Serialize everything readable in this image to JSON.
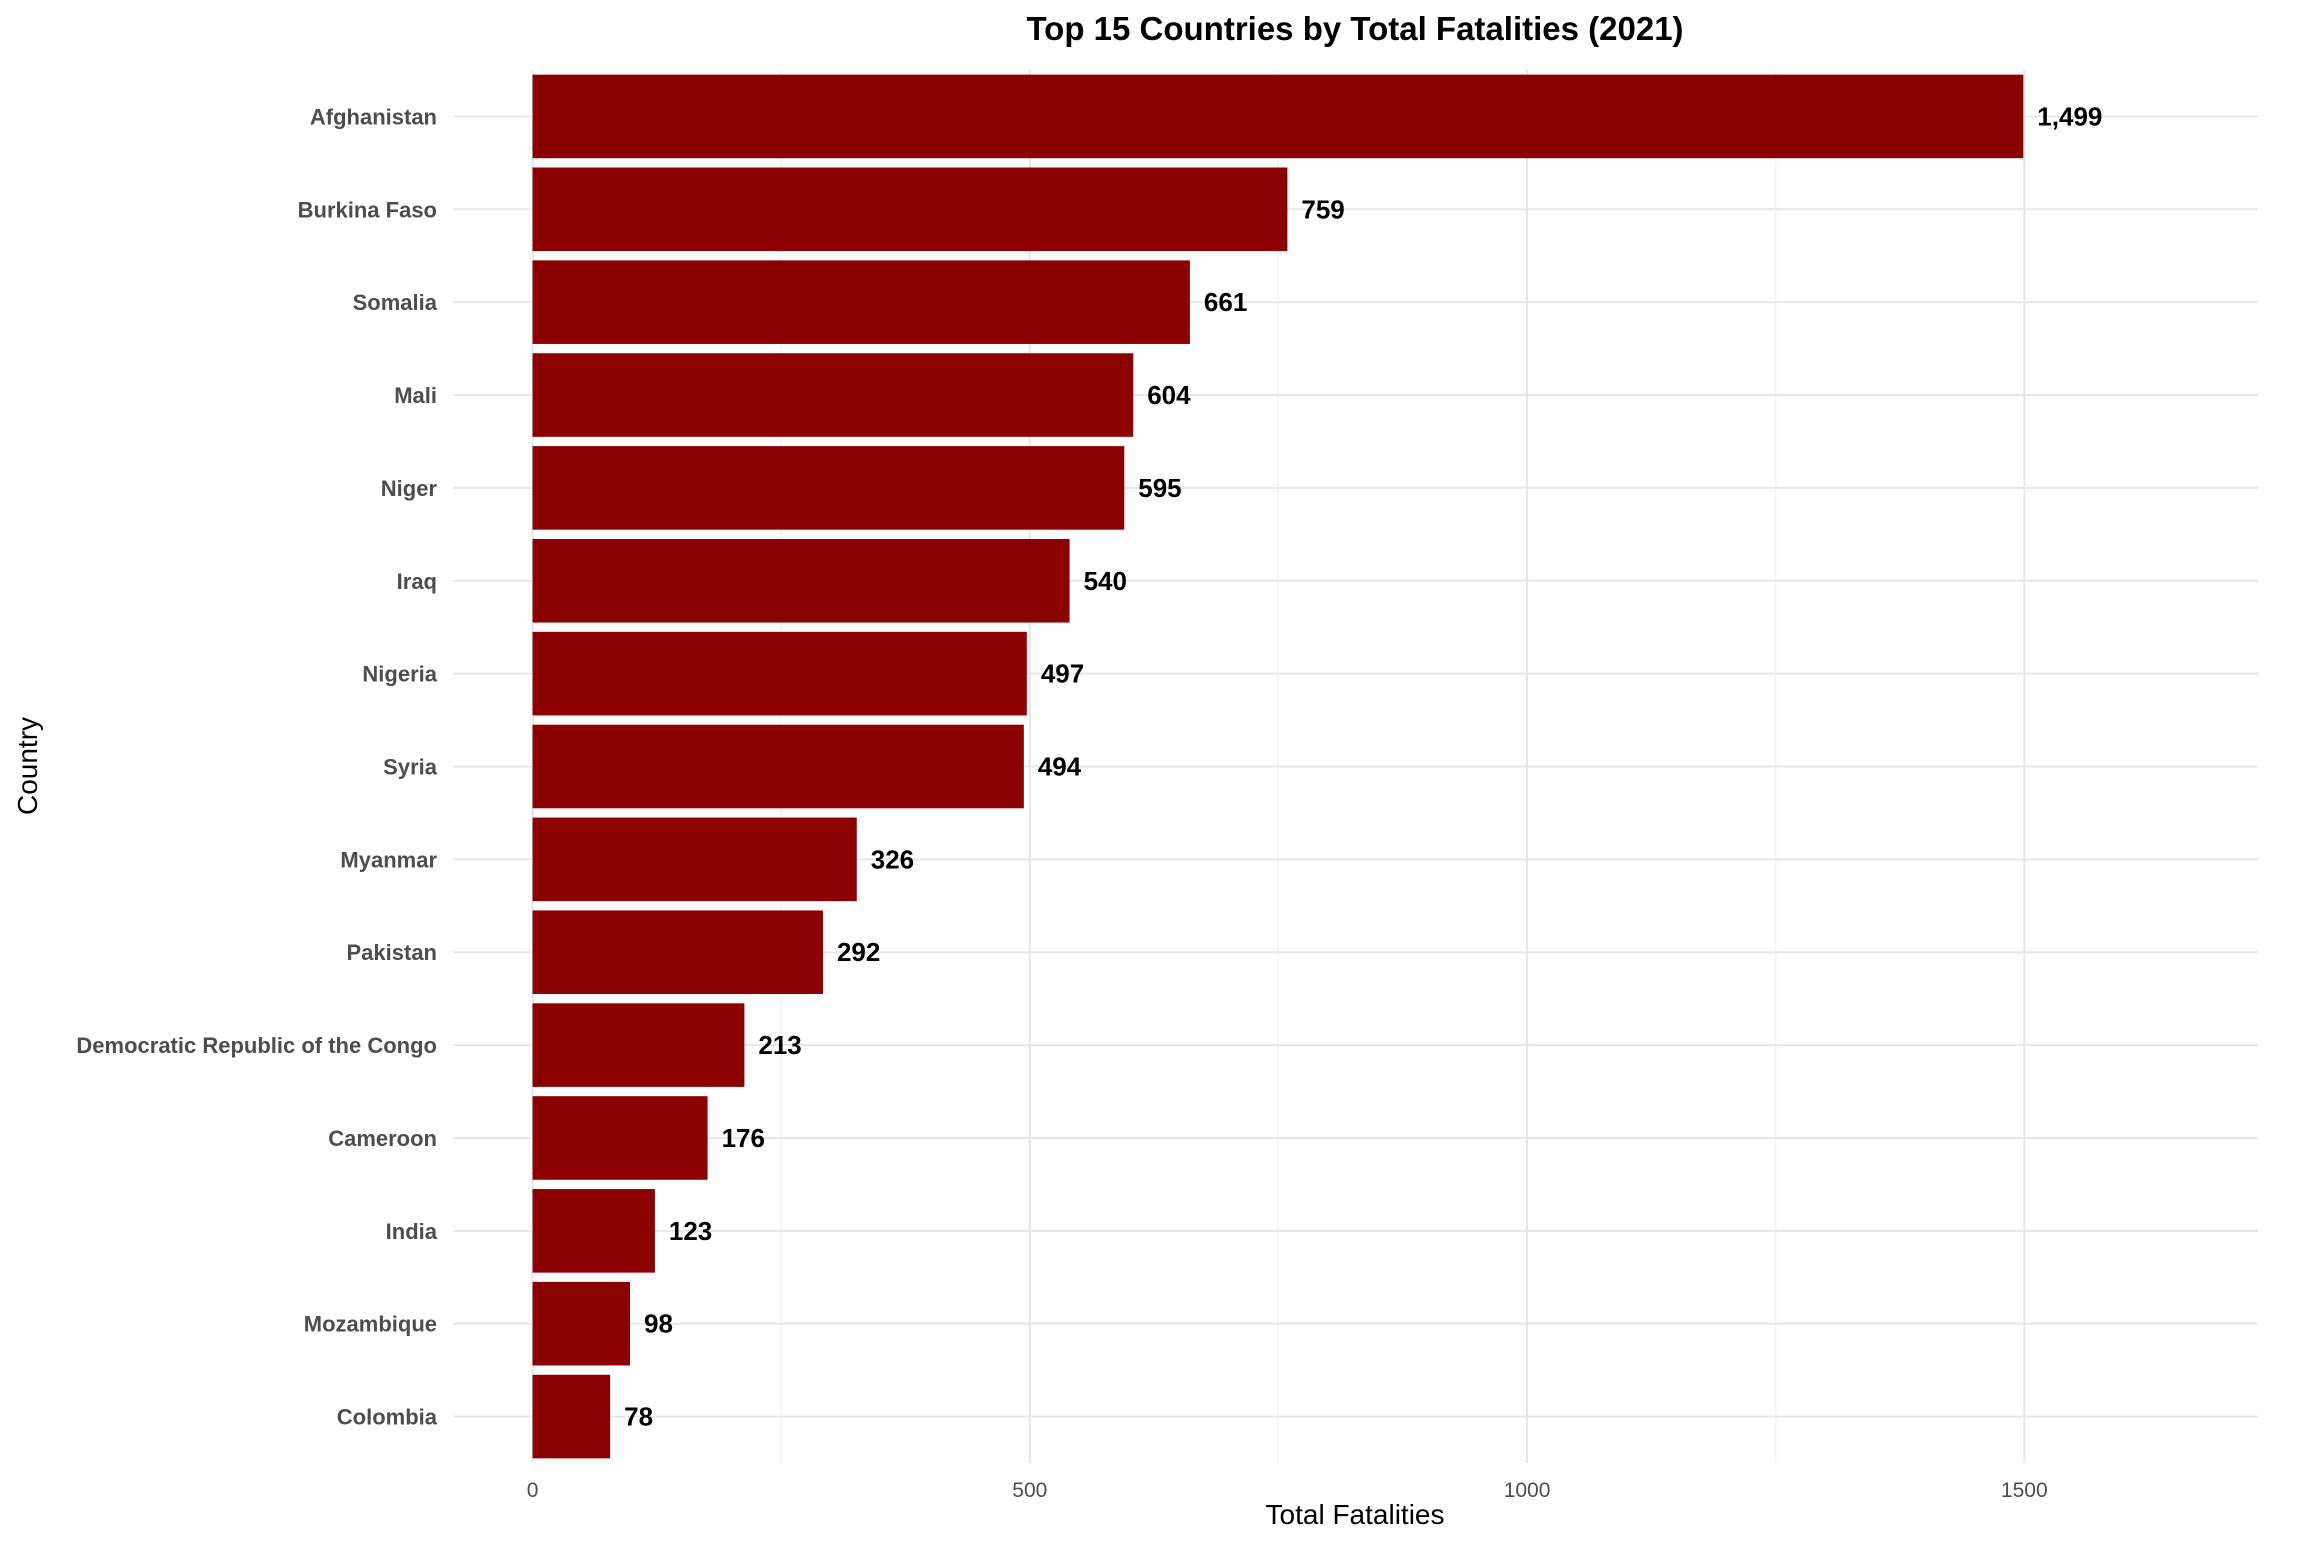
{
  "chart_data": {
    "type": "bar",
    "orientation": "horizontal",
    "title": "Top 15 Countries by Total Fatalities (2021)",
    "xlabel": "Total Fatalities",
    "ylabel": "Country",
    "categories": [
      "Afghanistan",
      "Burkina Faso",
      "Somalia",
      "Mali",
      "Niger",
      "Iraq",
      "Nigeria",
      "Syria",
      "Myanmar",
      "Pakistan",
      "Democratic Republic of the Congo",
      "Cameroon",
      "India",
      "Mozambique",
      "Colombia"
    ],
    "values": [
      1499,
      759,
      661,
      604,
      595,
      540,
      497,
      494,
      326,
      292,
      213,
      176,
      123,
      98,
      78
    ],
    "value_labels": [
      "1,499",
      "759",
      "661",
      "604",
      "595",
      "540",
      "497",
      "494",
      "326",
      "292",
      "213",
      "176",
      "123",
      "98",
      "78"
    ],
    "xlim": [
      -80,
      1735
    ],
    "xticks": [
      0,
      500,
      1000,
      1500
    ],
    "xtick_labels": [
      "0",
      "500",
      "1000",
      "1500"
    ],
    "grid": true,
    "legend": "none",
    "bar_color": "#8B0000"
  }
}
